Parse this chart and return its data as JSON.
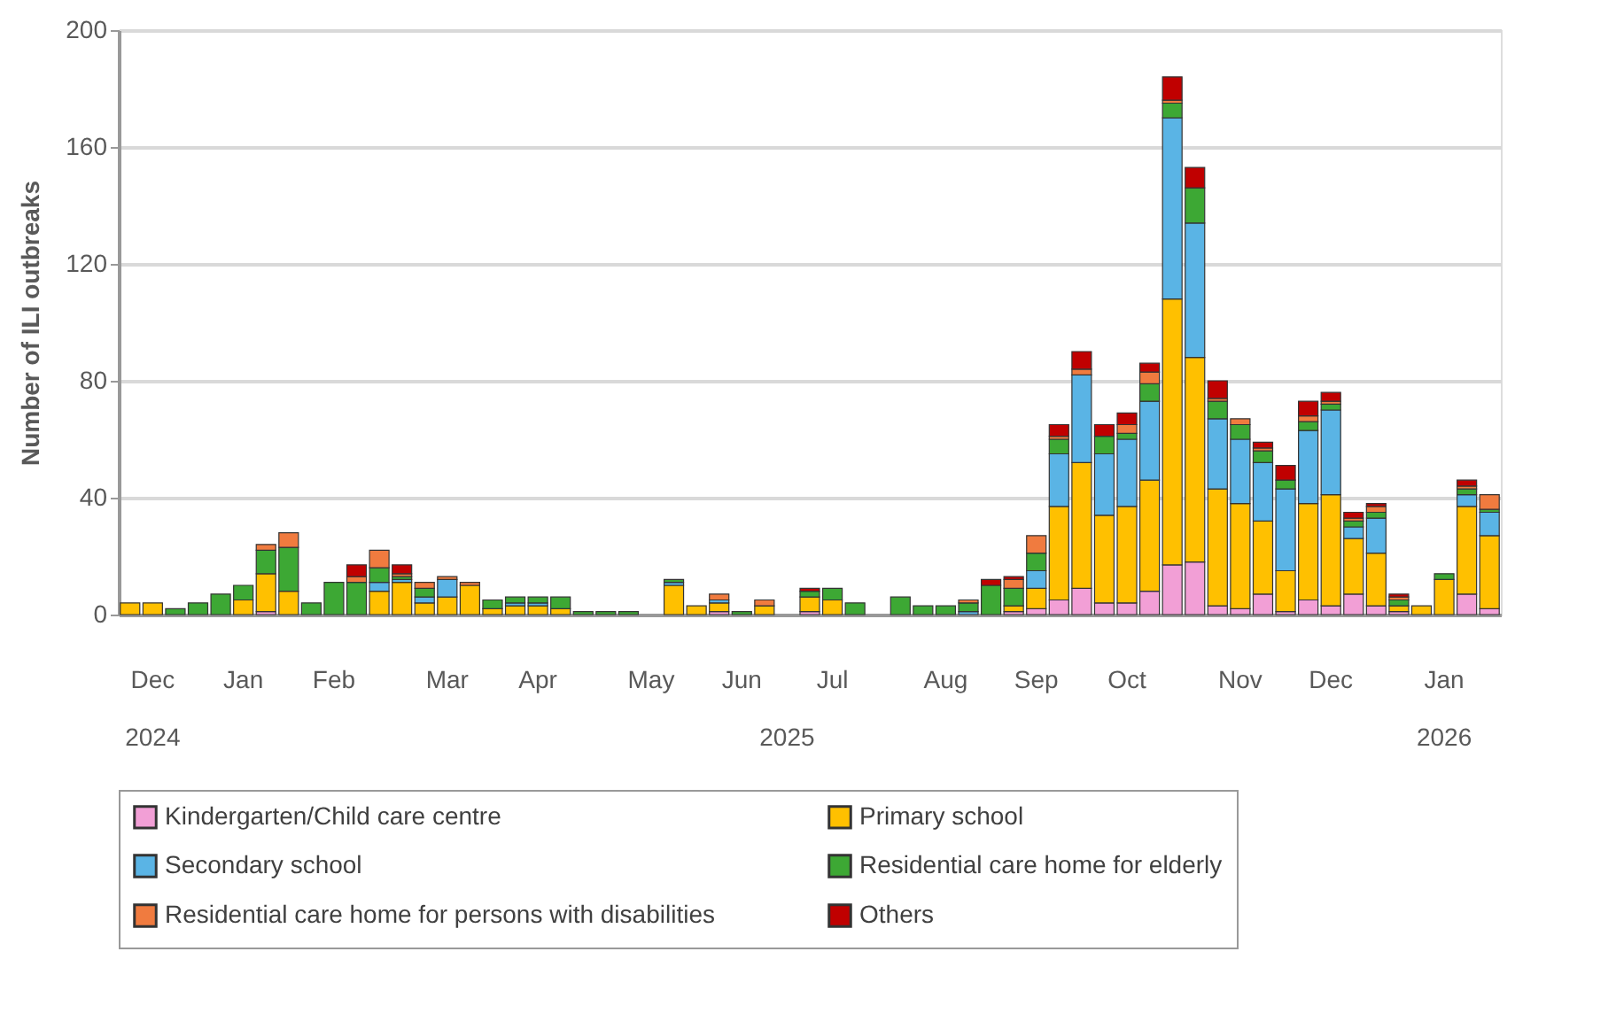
{
  "chart_data": {
    "type": "bar",
    "stacked": true,
    "ylabel": "Number of ILI outbreaks",
    "categories": [
      null,
      "Dec",
      null,
      null,
      null,
      "Jan",
      null,
      null,
      null,
      "Feb",
      null,
      null,
      null,
      null,
      "Mar",
      null,
      null,
      null,
      "Apr",
      null,
      null,
      null,
      null,
      "May",
      null,
      null,
      null,
      "Jun",
      null,
      null,
      null,
      "Jul",
      null,
      null,
      null,
      null,
      "Aug",
      null,
      null,
      null,
      "Sep",
      null,
      null,
      null,
      "Oct",
      null,
      null,
      null,
      null,
      "Nov",
      null,
      null,
      null,
      "Dec",
      null,
      null,
      null,
      null,
      "Jan",
      null,
      null
    ],
    "series": [
      {
        "name": "Kindergarten/Child care centre",
        "color": "#f29fd6",
        "values": [
          0,
          0,
          0,
          0,
          0,
          0,
          1,
          0,
          0,
          0,
          0,
          0,
          0,
          0,
          0,
          0,
          0,
          0,
          0,
          0,
          0,
          0,
          0,
          0,
          0,
          0,
          1,
          0,
          0,
          0,
          1,
          0,
          0,
          0,
          0,
          0,
          0,
          0,
          0,
          1,
          2,
          5,
          9,
          4,
          4,
          8,
          17,
          18,
          3,
          2,
          7,
          1,
          5,
          3,
          7,
          3,
          1,
          0,
          0,
          7,
          2
        ]
      },
      {
        "name": "Primary school",
        "color": "#ffc000",
        "values": [
          4,
          4,
          0,
          0,
          0,
          5,
          13,
          8,
          0,
          0,
          0,
          8,
          11,
          4,
          6,
          10,
          2,
          3,
          3,
          2,
          0,
          0,
          0,
          0,
          10,
          3,
          3,
          0,
          3,
          0,
          5,
          5,
          0,
          0,
          0,
          0,
          0,
          0,
          0,
          2,
          7,
          32,
          43,
          30,
          33,
          38,
          91,
          70,
          40,
          36,
          25,
          14,
          33,
          38,
          19,
          18,
          2,
          3,
          12,
          30,
          25
        ]
      },
      {
        "name": "Secondary school",
        "color": "#5ab4e5",
        "values": [
          0,
          0,
          0,
          0,
          0,
          0,
          0,
          0,
          0,
          0,
          0,
          3,
          1,
          2,
          6,
          0,
          0,
          1,
          1,
          0,
          0,
          0,
          0,
          0,
          1,
          0,
          1,
          0,
          0,
          0,
          0,
          0,
          0,
          0,
          0,
          0,
          0,
          1,
          0,
          0,
          6,
          18,
          30,
          21,
          23,
          27,
          62,
          46,
          24,
          22,
          20,
          28,
          25,
          29,
          4,
          12,
          0,
          0,
          0,
          4,
          8
        ]
      },
      {
        "name": "Residential care home for elderly",
        "color": "#3da834",
        "values": [
          0,
          0,
          2,
          4,
          7,
          5,
          8,
          15,
          4,
          11,
          11,
          5,
          1,
          3,
          0,
          0,
          3,
          2,
          2,
          4,
          1,
          1,
          1,
          0,
          1,
          0,
          0,
          1,
          0,
          0,
          2,
          4,
          4,
          0,
          6,
          3,
          3,
          3,
          10,
          6,
          6,
          5,
          0,
          6,
          2,
          6,
          5,
          12,
          6,
          5,
          4,
          3,
          3,
          2,
          2,
          2,
          2,
          0,
          2,
          2,
          1
        ]
      },
      {
        "name": "Residential care home for persons with disabilities",
        "color": "#f07b3f",
        "values": [
          0,
          0,
          0,
          0,
          0,
          0,
          2,
          5,
          0,
          0,
          2,
          6,
          1,
          2,
          1,
          1,
          0,
          0,
          0,
          0,
          0,
          0,
          0,
          0,
          0,
          0,
          2,
          0,
          2,
          0,
          0,
          0,
          0,
          0,
          0,
          0,
          0,
          1,
          0,
          3,
          6,
          1,
          2,
          0,
          3,
          4,
          1,
          0,
          1,
          2,
          1,
          0,
          2,
          1,
          1,
          2,
          1,
          0,
          0,
          1,
          5
        ]
      },
      {
        "name": "Others",
        "color": "#c00000",
        "values": [
          0,
          0,
          0,
          0,
          0,
          0,
          0,
          0,
          0,
          0,
          4,
          0,
          3,
          0,
          0,
          0,
          0,
          0,
          0,
          0,
          0,
          0,
          0,
          0,
          0,
          0,
          0,
          0,
          0,
          0,
          1,
          0,
          0,
          0,
          0,
          0,
          0,
          0,
          2,
          1,
          0,
          4,
          6,
          4,
          4,
          3,
          8,
          7,
          6,
          0,
          2,
          5,
          5,
          3,
          2,
          1,
          1,
          0,
          0,
          2,
          0
        ]
      }
    ],
    "ylim": [
      0,
      200
    ],
    "yticks": [
      0,
      40,
      80,
      120,
      160,
      200
    ],
    "grid": "y",
    "legend": "bottom",
    "annotations": [
      "2024",
      "2025",
      "2026"
    ]
  }
}
